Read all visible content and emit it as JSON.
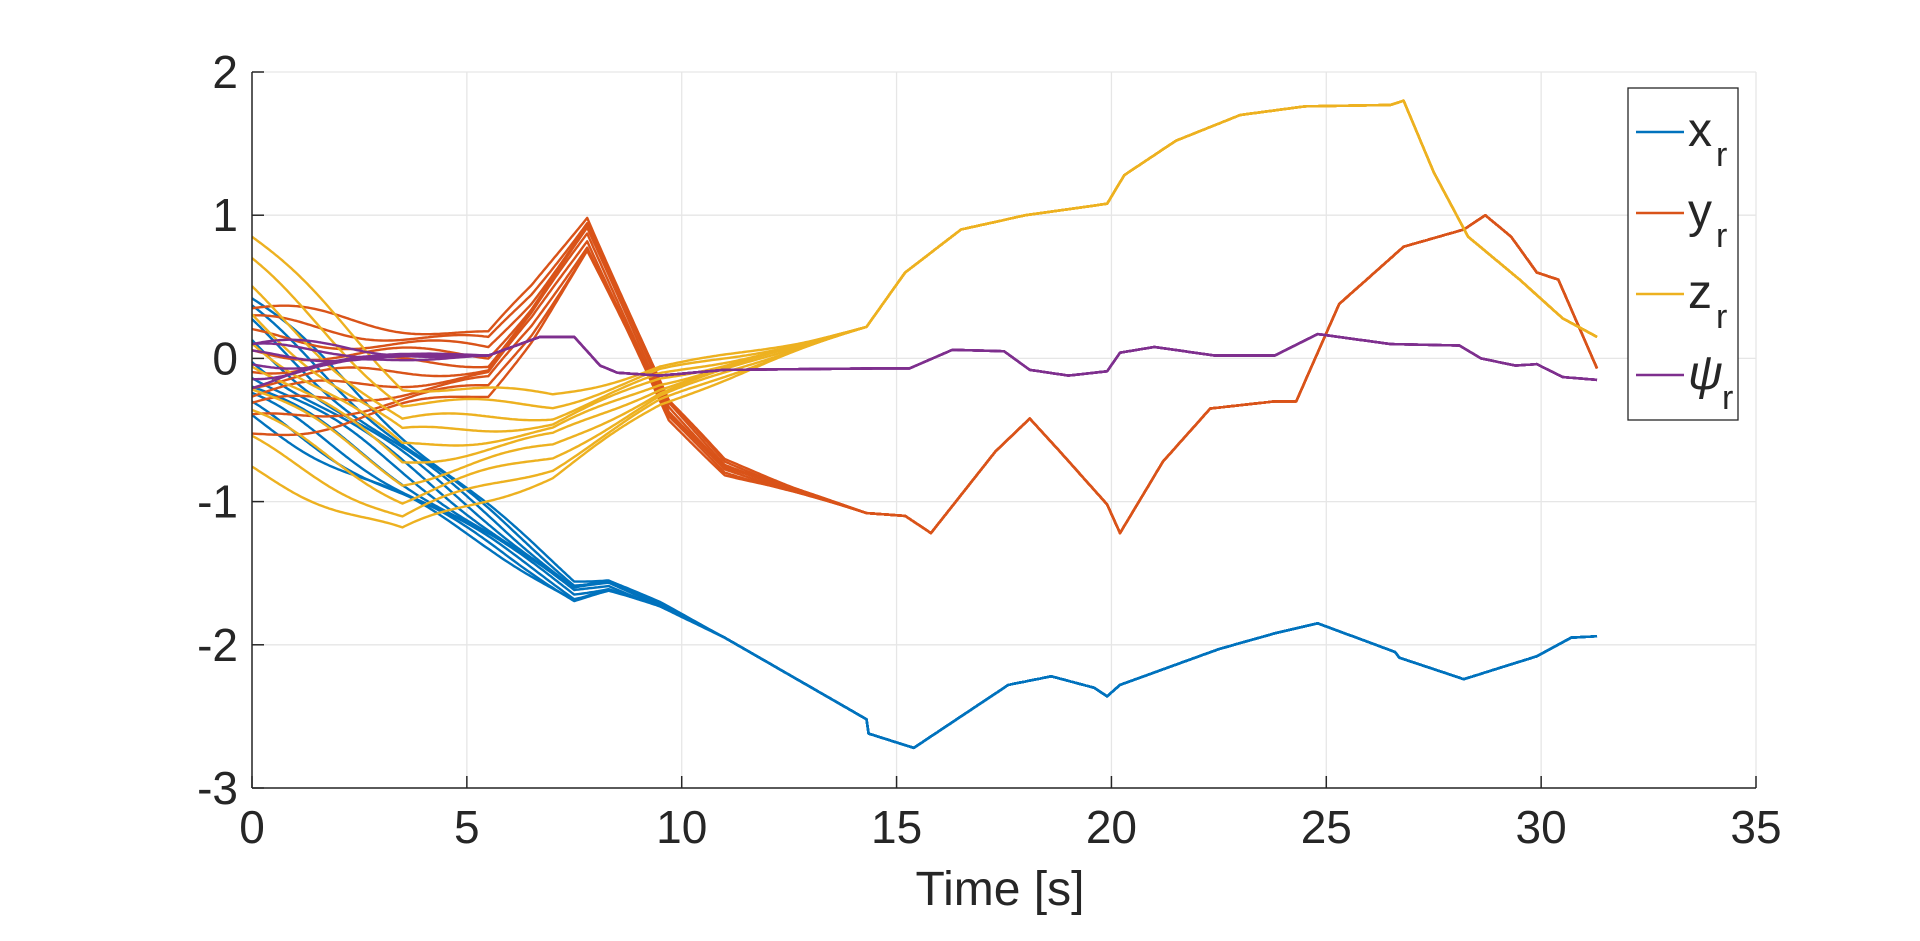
{
  "chart_data": {
    "type": "line",
    "title": "",
    "xlabel": "Time [s]",
    "ylabel": "",
    "xlim": [
      0,
      35
    ],
    "ylim": [
      -3,
      2
    ],
    "xticks": [
      0,
      5,
      10,
      15,
      20,
      25,
      30,
      35
    ],
    "yticks": [
      -3,
      -2,
      -1,
      0,
      1,
      2
    ],
    "xtick_labels": [
      "0",
      "5",
      "10",
      "15",
      "20",
      "25",
      "30",
      "35"
    ],
    "ytick_labels": [
      "-3",
      "-2",
      "-1",
      "0",
      "1",
      "2"
    ],
    "grid": true,
    "legend_position": "top-right",
    "note": "Each series is drawn as a bundle of trajectories that start at different initial values and converge onto a common path.",
    "series": [
      {
        "name": "x_r",
        "label": "x",
        "subscript": "r",
        "color": "#0072BD",
        "starts": [
          0.42,
          0.32,
          0.22,
          0.12,
          0.02,
          -0.08,
          -0.18,
          -0.28,
          -0.36,
          -0.42
        ],
        "merge_time": 11,
        "x": [
          0,
          5.6,
          7.5,
          8.3,
          9.5,
          11,
          14.3,
          14.35,
          15.4,
          17.6,
          18.6,
          19.6,
          19.9,
          20.2,
          22.5,
          23.8,
          24.8,
          26.6,
          26.7,
          28.2,
          29.9,
          30.7,
          31.3
        ],
        "y": [
          0.0,
          -1.2,
          -1.62,
          -1.58,
          -1.72,
          -1.95,
          -2.52,
          -2.62,
          -2.72,
          -2.28,
          -2.22,
          -2.3,
          -2.36,
          -2.28,
          -2.03,
          -1.92,
          -1.85,
          -2.05,
          -2.09,
          -2.24,
          -2.08,
          -1.95,
          -1.94
        ]
      },
      {
        "name": "y_r",
        "label": "y",
        "subscript": "r",
        "color": "#D95319",
        "starts": [
          0.35,
          0.25,
          0.15,
          0.05,
          -0.05,
          -0.15,
          -0.25,
          -0.35,
          -0.45,
          -0.55
        ],
        "merge_time": 14.3,
        "x": [
          0,
          5.5,
          6.5,
          7.8,
          8.8,
          9.7,
          11,
          14.3,
          15.2,
          15.8,
          17.3,
          18.1,
          18.8,
          19.9,
          20.2,
          21.2,
          22.3,
          23.8,
          24.3,
          25.3,
          26.8,
          28.2,
          28.7,
          29.3,
          29.9,
          30.4,
          31.3
        ],
        "y": [
          0.0,
          0.0,
          0.35,
          0.9,
          0.25,
          -0.35,
          -0.75,
          -1.08,
          -1.1,
          -1.22,
          -0.65,
          -0.42,
          -0.65,
          -1.02,
          -1.22,
          -0.72,
          -0.35,
          -0.3,
          -0.3,
          0.38,
          0.78,
          0.9,
          1.0,
          0.85,
          0.6,
          0.55,
          -0.07
        ]
      },
      {
        "name": "z_r",
        "label": "z",
        "subscript": "r",
        "color": "#EDB120",
        "starts": [
          0.85,
          0.65,
          0.45,
          0.3,
          0.15,
          0.0,
          -0.2,
          -0.4,
          -0.6,
          -0.78
        ],
        "merge_time": 14.3,
        "x": [
          0,
          3.5,
          7,
          9.5,
          12,
          14.3,
          15.2,
          16.5,
          18,
          19.9,
          20.3,
          21.5,
          23,
          24.5,
          26.5,
          26.8,
          27.5,
          28.3,
          29.5,
          30.5,
          31.3
        ],
        "y": [
          0.0,
          -0.72,
          -0.55,
          -0.2,
          0.02,
          0.22,
          0.6,
          0.9,
          1.0,
          1.08,
          1.28,
          1.52,
          1.7,
          1.76,
          1.77,
          1.8,
          1.3,
          0.85,
          0.55,
          0.28,
          0.15
        ]
      },
      {
        "name": "psi_r",
        "label": "ψ",
        "subscript": "r",
        "color": "#7E2F8E",
        "starts": [
          0.1,
          0.05,
          0.0,
          -0.05,
          -0.1,
          -0.15
        ],
        "merge_time": 5.5,
        "x": [
          0,
          2,
          5.5,
          6.7,
          7.5,
          8.1,
          8.5,
          9.5,
          11,
          14.5,
          15.3,
          16.3,
          17.5,
          18.1,
          19,
          19.9,
          20.2,
          21,
          22.4,
          23.8,
          24.8,
          26.5,
          28.1,
          28.6,
          29.4,
          29.9,
          30.5,
          31.3
        ],
        "y": [
          0.0,
          0.02,
          0.02,
          0.15,
          0.15,
          -0.05,
          -0.1,
          -0.12,
          -0.08,
          -0.07,
          -0.07,
          0.06,
          0.05,
          -0.08,
          -0.12,
          -0.09,
          0.04,
          0.08,
          0.02,
          0.02,
          0.17,
          0.1,
          0.09,
          0.0,
          -0.05,
          -0.04,
          -0.13,
          -0.15
        ]
      }
    ]
  }
}
